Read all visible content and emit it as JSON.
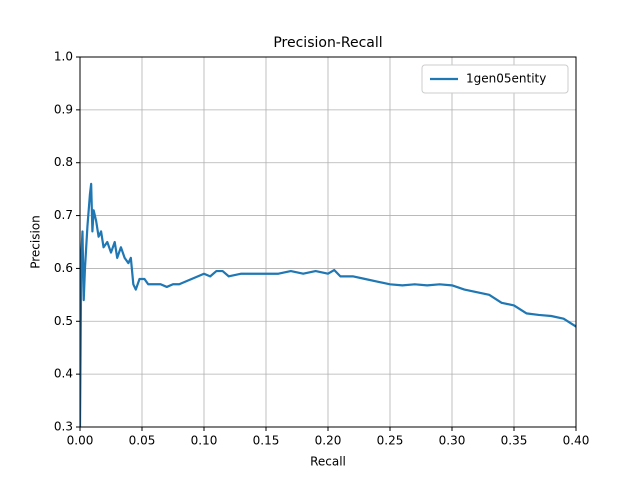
{
  "chart_data": {
    "type": "line",
    "title": "Precision-Recall",
    "x_label": "Recall",
    "y_label": "Precision",
    "x": [
      0,
      0.0005,
      0.001,
      0.002,
      0.003,
      0.004,
      0.006,
      0.008,
      0.009,
      0.01,
      0.011,
      0.013,
      0.015,
      0.017,
      0.019,
      0.022,
      0.025,
      0.028,
      0.03,
      0.033,
      0.036,
      0.039,
      0.041,
      0.043,
      0.045,
      0.048,
      0.052,
      0.055,
      0.06,
      0.065,
      0.07,
      0.075,
      0.08,
      0.09,
      0.1,
      0.105,
      0.11,
      0.115,
      0.12,
      0.13,
      0.14,
      0.15,
      0.16,
      0.17,
      0.18,
      0.19,
      0.2,
      0.205,
      0.21,
      0.22,
      0.23,
      0.24,
      0.25,
      0.26,
      0.27,
      0.28,
      0.29,
      0.3,
      0.31,
      0.32,
      0.33,
      0.34,
      0.35,
      0.36,
      0.37,
      0.38,
      0.39,
      0.4
    ],
    "series": [
      {
        "name": "1gen05entity",
        "color": "#1f77b4",
        "values": [
          0.3,
          0.45,
          0.62,
          0.67,
          0.54,
          0.6,
          0.68,
          0.74,
          0.76,
          0.67,
          0.71,
          0.69,
          0.66,
          0.67,
          0.64,
          0.65,
          0.63,
          0.65,
          0.62,
          0.64,
          0.62,
          0.61,
          0.62,
          0.57,
          0.56,
          0.58,
          0.58,
          0.57,
          0.57,
          0.57,
          0.565,
          0.57,
          0.57,
          0.58,
          0.59,
          0.585,
          0.595,
          0.595,
          0.585,
          0.59,
          0.59,
          0.59,
          0.59,
          0.595,
          0.59,
          0.595,
          0.59,
          0.597,
          0.585,
          0.585,
          0.58,
          0.575,
          0.57,
          0.568,
          0.57,
          0.568,
          0.57,
          0.568,
          0.56,
          0.555,
          0.55,
          0.535,
          0.53,
          0.515,
          0.512,
          0.51,
          0.505,
          0.49
        ]
      }
    ],
    "xlim": [
      0,
      0.4
    ],
    "ylim": [
      0.3,
      1.0
    ],
    "xticks": [
      {
        "value": 0,
        "label": "0.00"
      },
      0.05,
      {
        "value": 0.1,
        "label": "0.10"
      },
      0.15,
      {
        "value": 0.2,
        "label": "0.20"
      },
      0.25,
      {
        "value": 0.3,
        "label": "0.30"
      },
      0.35,
      {
        "value": 0.4,
        "label": "0.40"
      }
    ],
    "yticks": [
      0.3,
      0.4,
      0.5,
      0.6,
      0.7,
      0.8,
      0.9,
      {
        "value": 1.0,
        "label": "1.0"
      }
    ],
    "grid": true,
    "legend": "upper right"
  }
}
